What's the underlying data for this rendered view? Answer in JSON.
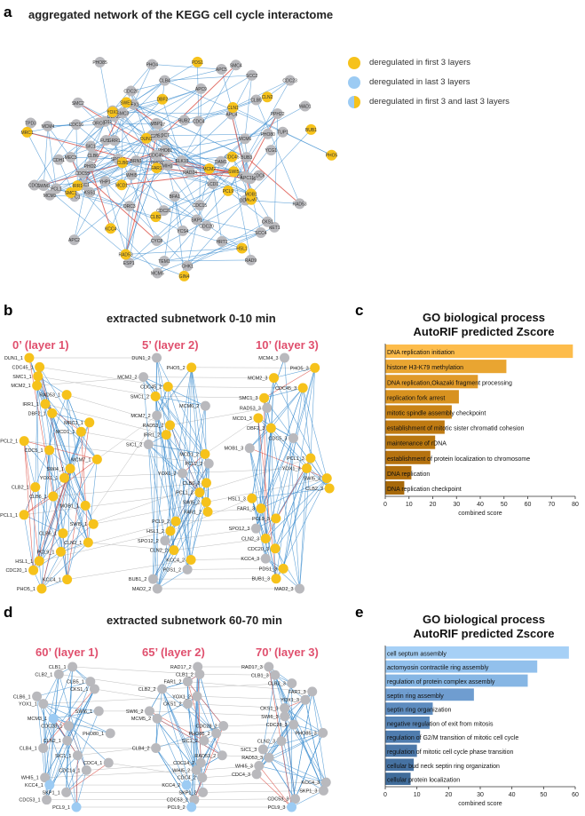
{
  "panels": {
    "a": {
      "letter": "a",
      "title": "aggregated network of the KEGG cell cycle interactome"
    },
    "b": {
      "letter": "b",
      "title": "extracted subnetwork 0-10 min",
      "layers": [
        "0’ (layer 1)",
        "5’ (layer 2)",
        "10’ (layer 3)"
      ]
    },
    "c": {
      "letter": "c",
      "title_line1": "GO biological process",
      "title_line2": "AutoRIF predicted Zscore"
    },
    "d": {
      "letter": "d",
      "title": "extracted subnetwork 60-70 min",
      "layers": [
        "60’ (layer 1)",
        "65’ (layer 2)",
        "70’ (layer 3)"
      ]
    },
    "e": {
      "letter": "e",
      "title_line1": "GO biological process",
      "title_line2": "AutoRIF predicted Zscore"
    }
  },
  "legend": [
    {
      "label": "deregulated in first 3 layers",
      "color": "#f6c21b"
    },
    {
      "label": "deregulated in last 3 layers",
      "color": "#9ccbf3"
    },
    {
      "label": "deregulated in first 3 and last 3 layers",
      "color": "#c7bd7d"
    }
  ],
  "colors": {
    "gray_node": "#b9b9bd",
    "yellow_node": "#f6c21b",
    "blue_node": "#9ccbf3",
    "edge": "#3f8fd0",
    "red_edge": "#d9443a"
  },
  "network_a": {
    "gray": [
      "MEC3",
      "MEC1",
      "PHO12",
      "CDC7",
      "RAD17",
      "RAD24",
      "DDC1",
      "KSS1",
      "RAD9",
      "FUS3",
      "ORC3",
      "CHK1",
      "DBF20",
      "LCD1",
      "CDC6",
      "MCM6",
      "MCM3",
      "BFA1",
      "TEM1",
      "MAD1",
      "PHO81",
      "SKP1",
      "MCM5",
      "ORC6",
      "MAD3",
      "NET1",
      "DAM1",
      "PHO85",
      "PCL2",
      "MCM4",
      "CDC45",
      "CDC14",
      "BUB2",
      "MPS1",
      "PHO2",
      "PCL1",
      "PHO4",
      "RAD53",
      "CDC15",
      "YHP1",
      "SIC1",
      "CDC28",
      "CDC5",
      "CDH1",
      "TPD3",
      "PHO11",
      "RFX1",
      "CLB6",
      "SWI6",
      "MBP1",
      "CDC20",
      "PHO80",
      "HRT1",
      "ESP1",
      "CDC4",
      "CLB5",
      "SPO12",
      "MIH1",
      "CDC55",
      "WHI5",
      "CKS1",
      "GRR1",
      "CLB4",
      "CDC23",
      "APC9",
      "SCC4",
      "CDC26",
      "PPH22",
      "CYC8",
      "TUP1",
      "CDC16",
      "SMC4",
      "CAK1",
      "APC2",
      "SWM1",
      "APC4",
      "APC11",
      "APC5",
      "BRN1",
      "YCS4",
      "SMC2",
      "YCG1",
      "CDC27",
      "APC1",
      "SLK19",
      "SCC2",
      "BUB3",
      "SMC3"
    ],
    "yellow": [
      "DUN1",
      "CDC45",
      "SWI5",
      "MRC1",
      "MCM2",
      "PCL9",
      "RAD53",
      "CLN2",
      "CLB6",
      "YOX1",
      "MCM7",
      "PDS1",
      "MOB1",
      "MCD1",
      "DBF2",
      "IRR1",
      "SMC1",
      "BUB1",
      "CLB2",
      "CLN1",
      "HSL1",
      "KCC4",
      "FAR1",
      "PHO5",
      "GIN4",
      "SWE1"
    ],
    "blue": [],
    "mixed": []
  },
  "network_b": {
    "layer1": [
      "DUN1_1",
      "CDC45_1",
      "SMC1_1",
      "MCM2_1",
      "RAD53_1",
      "IRR1_1",
      "DBF2_1",
      "MRC1_1",
      "MCD1_1",
      "PCL2_1",
      "CDC5_1",
      "MCM7_1",
      "SWI4_1",
      "YOX1_1",
      "CLB2_1",
      "CLB6_1",
      "MOB1_1",
      "PCL1_1",
      "SWI5_1",
      "CLB6_1",
      "CLN2_1",
      "PCL9_1",
      "HSL1_1",
      "CDC20_1",
      "KCC4_1",
      "PHO5_1"
    ],
    "layer2": [
      "DUN1_2",
      "PHO5_2",
      "MCM2_2",
      "CDC45_2",
      "SMC1_2",
      "MCM6_2",
      "MCM7_2",
      "RAD53_2",
      "IRR1_2",
      "SIC1_2",
      "MCD1_2",
      "PCL2_2",
      "YOX1_2",
      "CLB6_2",
      "PCL1_2",
      "SWI5_2",
      "FAR1_2",
      "PCL9_2",
      "HSL1_2",
      "SPO12_2",
      "CLN2_2",
      "KCC4_2",
      "PDS1_2",
      "BUB1_2",
      "MAD2_2"
    ],
    "layer3": [
      "MCM4_3",
      "PHO5_3",
      "MCM2_3",
      "CDC45_3",
      "SMC1_3",
      "RAD53_3",
      "MCD1_3",
      "DBF2_3",
      "CDC5_3",
      "MOB1_3",
      "PCL1_3",
      "YOX1_3",
      "SWI5_3",
      "CLB2_3",
      "HSL1_3",
      "FAR1_3",
      "PCL9_3",
      "SPO12_3",
      "CLN2_3",
      "CDC20_3",
      "KCC4_3",
      "PDS1_3",
      "BUB1_3",
      "MAD2_3"
    ]
  },
  "network_d": {
    "layer1": [
      "CLB1_1",
      "CLB2_1",
      "CLB5_1",
      "CKS1_1",
      "CLB6_1",
      "YOX1_1",
      "SWI6_1",
      "MCM3_1",
      "CDC28_1",
      "PHO80_1",
      "CLN2_1",
      "CLB4_1",
      "SIC1_1",
      "CDC4_1",
      "CDC14_1",
      "WHI5_1",
      "KCC4_1",
      "SKP1_1",
      "CDC53_1",
      "PCL9_1"
    ],
    "layer2": [
      "RAD17_2",
      "CLB1_2",
      "FAR1_2",
      "CLB2_2",
      "YOX1_2",
      "CKS1_2",
      "SWI6_2",
      "MCM5_2",
      "CDC28_2",
      "PHO85_2",
      "SIC1_2",
      "CLB4_2",
      "RAD53_2",
      "CDC14_2",
      "WHI5_2",
      "CDC4_2",
      "KCC4_2",
      "SKP1_2",
      "CDC53_2",
      "PCL9_2"
    ],
    "layer3": [
      "RAD17_3",
      "CLB1_3",
      "CLB2_3",
      "FAR1_3",
      "YOX1_3",
      "CKS1_3",
      "SWI6_3",
      "CDC28_3",
      "PHO85_3",
      "CLN2_3",
      "SIC1_3",
      "RAD53_3",
      "WHI5_3",
      "CDC4_3",
      "KCC4_3",
      "SKP1_3",
      "CDC53_3",
      "PCL9_3"
    ]
  },
  "chart_data": [
    {
      "type": "bar",
      "orientation": "horizontal",
      "title": "GO biological process AutoRIF predicted Zscore",
      "xlabel": "combined score",
      "ylabel": "",
      "xlim": [
        0,
        80
      ],
      "xticks": [
        0,
        10,
        20,
        30,
        40,
        50,
        60,
        70,
        80
      ],
      "categories": [
        "DNA replication initiation",
        "histone H3-K79 methylation",
        "DNA replication,Okazaki fragment processing",
        "replication fork arrest",
        "mitotic spindle assembly checkpoint",
        "establishment of mitotic sister chromatid cohesion",
        "maintenance of rDNA",
        "establishment of protein localization to chromosome",
        "DNA replication",
        "DNA replication checkpoint"
      ],
      "values": [
        79,
        51,
        39,
        31,
        28,
        25,
        21,
        19,
        11,
        8
      ],
      "colors": [
        "#fdbc4b",
        "#e9a531",
        "#e09a2a",
        "#d8921f",
        "#c98316",
        "#bf7a12",
        "#b8760f",
        "#b5720f",
        "#b06e0c",
        "#a7690a"
      ]
    },
    {
      "type": "bar",
      "orientation": "horizontal",
      "title": "GO biological process AutoRIF predicted Zscore",
      "xlabel": "combined score",
      "ylabel": "",
      "xlim": [
        0,
        60
      ],
      "xticks": [
        0,
        10,
        20,
        30,
        40,
        50,
        60
      ],
      "categories": [
        "cell septum assembly",
        "actomyosin contractile ring assembly",
        "regulation of protein complex assembly",
        "septin ring assembly",
        "septin ring organization",
        "negative regulation of exit from mitosis",
        "regulation of G2/M transition of mitotic cell cycle",
        "regulation of mitotic cell cycle phase transition",
        "cellular bud neck septin ring organization",
        "cellular protein localization"
      ],
      "values": [
        58,
        48,
        45,
        28,
        15,
        14,
        11,
        10,
        9,
        8
      ],
      "colors": [
        "#a6d0f6",
        "#92c0ec",
        "#86b6e4",
        "#6f9dd0",
        "#5e8cbf",
        "#5886b8",
        "#4f7cae",
        "#4b77a8",
        "#4672a2",
        "#406c9a"
      ]
    }
  ]
}
